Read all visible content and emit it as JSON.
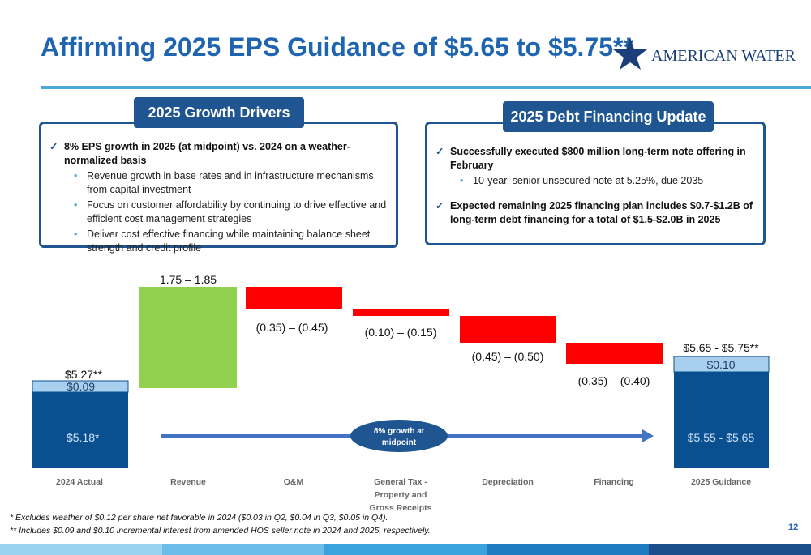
{
  "header": {
    "title": "Affirming 2025 EPS Guidance of $5.65 to $5.75**",
    "logo": "American Water"
  },
  "growth_drivers": {
    "heading": "2025 Growth Drivers",
    "items": [
      {
        "text": "8% EPS growth in 2025 (at midpoint) vs. 2024 on a weather-normalized basis",
        "sub": [
          "Revenue growth in base rates and in infrastructure mechanisms from capital investment",
          "Focus on customer affordability by continuing to drive effective and efficient cost management strategies",
          "Deliver cost effective financing while maintaining balance sheet strength and credit profile"
        ]
      }
    ]
  },
  "debt_update": {
    "heading": "2025 Debt Financing Update",
    "items": [
      {
        "text": "Successfully executed $800 million long-term note offering in February",
        "sub": [
          "10-year, senior unsecured note at 5.25%, due 2035"
        ]
      },
      {
        "text": "Expected remaining 2025 financing plan includes $0.7-$1.2B of long-term debt financing for a total of $1.5-$2.0B in 2025",
        "sub": []
      }
    ]
  },
  "waterfall": {
    "categories": [
      "2024 Actual",
      "Revenue",
      "O&M",
      "General Tax - Property and Gross Receipts",
      "Depreciation",
      "Financing",
      "2025 Guidance"
    ],
    "labels": {
      "actual_total": "$5.27**",
      "actual_base": "$5.18*",
      "actual_interest": "$0.09",
      "revenue": "1.75 – 1.85",
      "om": "(0.35) – (0.45)",
      "general_tax": "(0.10) – (0.15)",
      "depreciation": "(0.45) – (0.50)",
      "financing": "(0.35) – (0.40)",
      "guidance_total": "$5.65 - $5.75**",
      "guidance_base": "$5.55 - $5.65",
      "guidance_interest": "$0.10"
    },
    "growth_note": "8% growth at midpoint"
  },
  "footnotes": [
    "* Excludes weather of $0.12 per share net favorable in 2024 ($0.03 in Q2, $0.04 in Q3, $0.05 in Q4).",
    "** Includes $0.09 and $0.10 incremental interest from amended HOS seller note in 2024 and 2025, respectively."
  ],
  "page_number": "12"
}
